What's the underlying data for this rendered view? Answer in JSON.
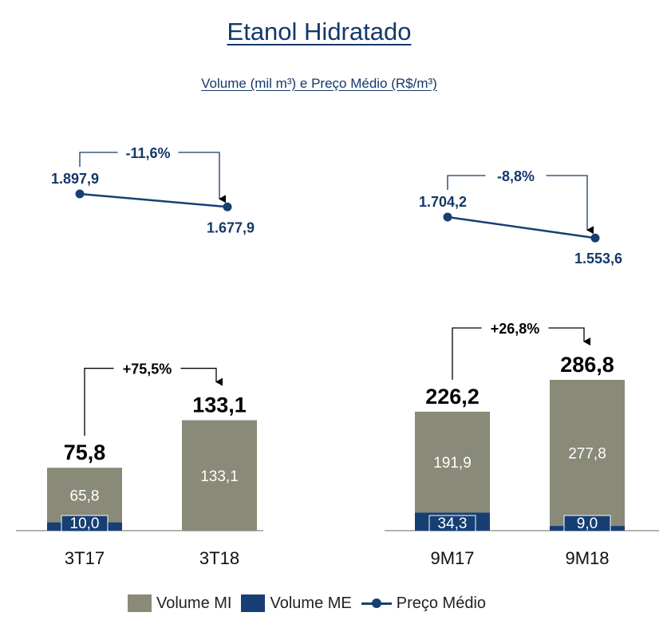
{
  "chart_data": {
    "type": "bar",
    "title": "Etanol Hidratado",
    "subtitle": "Volume (mil m³) e Preço Médio (R$/m³)",
    "groups": [
      {
        "periods": [
          {
            "label": "3T17",
            "mi": 65.8,
            "me": 10.0,
            "mi_label": "65,8",
            "me_label": "10,0",
            "total": 75.8,
            "total_label": "75,8",
            "price": 1897.9,
            "price_label": "1.897,9"
          },
          {
            "label": "3T18",
            "mi": 133.1,
            "me": 0,
            "mi_label": "133,1",
            "me_label": "",
            "total": 133.1,
            "total_label": "133,1",
            "price": 1677.9,
            "price_label": "1.677,9"
          }
        ],
        "volume_change": "+75,5%",
        "price_change": "-11,6%"
      },
      {
        "periods": [
          {
            "label": "9M17",
            "mi": 191.9,
            "me": 34.3,
            "mi_label": "191,9",
            "me_label": "34,3",
            "total": 226.2,
            "total_label": "226,2",
            "price": 1704.2,
            "price_label": "1.704,2"
          },
          {
            "label": "9M18",
            "mi": 277.8,
            "me": 9.0,
            "mi_label": "277,8",
            "me_label": "9,0",
            "total": 286.8,
            "total_label": "286,8",
            "price": 1553.6,
            "price_label": "1.553,6"
          }
        ],
        "volume_change": "+26,8%",
        "price_change": "-8,8%"
      }
    ],
    "legend": [
      {
        "key": "mi",
        "label": "Volume MI",
        "kind": "bar"
      },
      {
        "key": "me",
        "label": "Volume ME",
        "kind": "bar"
      },
      {
        "key": "price",
        "label": "Preço Médio",
        "kind": "line"
      }
    ],
    "colors": {
      "mi": "#8a8a78",
      "me": "#173f74",
      "price": "#173f74",
      "text": "#15386a"
    }
  }
}
